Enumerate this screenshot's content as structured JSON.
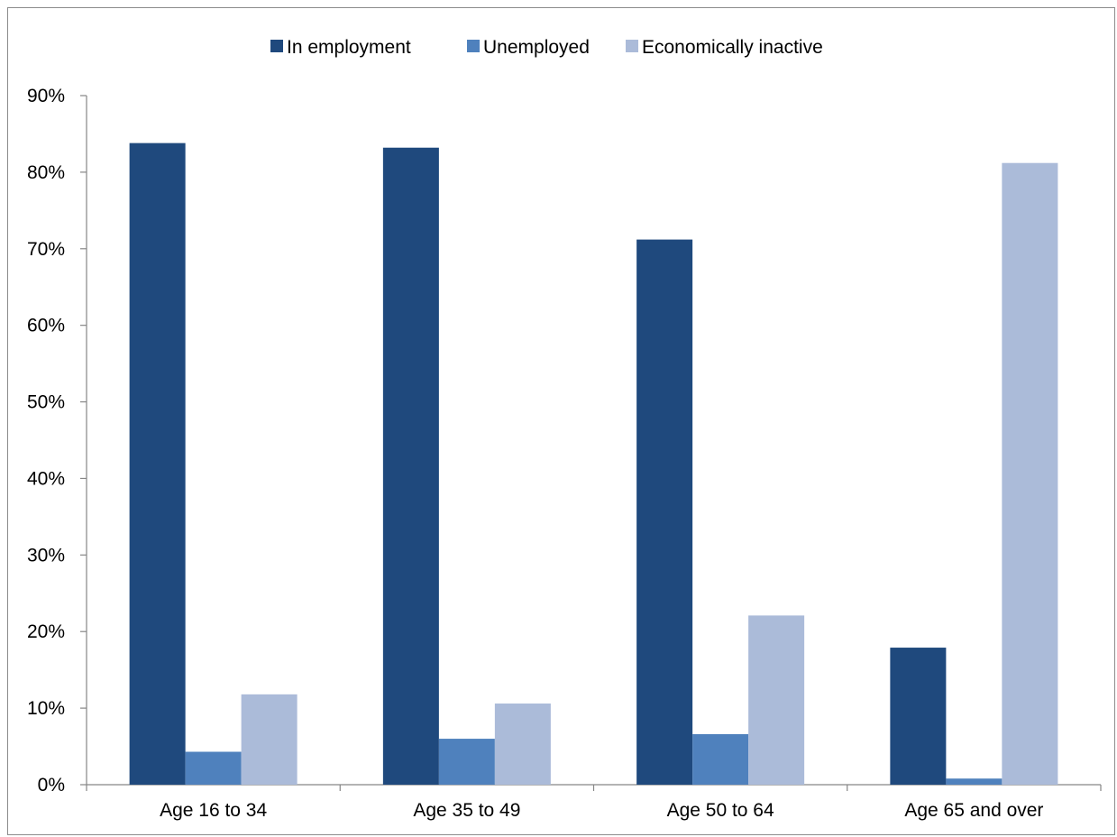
{
  "chart_data": {
    "type": "bar",
    "categories": [
      "Age 16 to 34",
      "Age 35 to 49",
      "Age 50 to 64",
      "Age 65 and over"
    ],
    "series": [
      {
        "name": "In employment",
        "color": "#1f497d",
        "values": [
          83.8,
          83.2,
          71.2,
          17.9
        ]
      },
      {
        "name": "Unemployed",
        "color": "#4f81bd",
        "values": [
          4.3,
          6.0,
          6.6,
          0.8
        ]
      },
      {
        "name": "Economically inactive",
        "color": "#abbbd9",
        "values": [
          11.8,
          10.6,
          22.1,
          81.2
        ]
      }
    ],
    "ylim": [
      0,
      90
    ],
    "yticks": [
      0,
      10,
      20,
      30,
      40,
      50,
      60,
      70,
      80,
      90
    ],
    "ytick_labels": [
      "0%",
      "10%",
      "20%",
      "30%",
      "40%",
      "50%",
      "60%",
      "70%",
      "80%",
      "90%"
    ],
    "legend_position": "top",
    "grid": false
  }
}
